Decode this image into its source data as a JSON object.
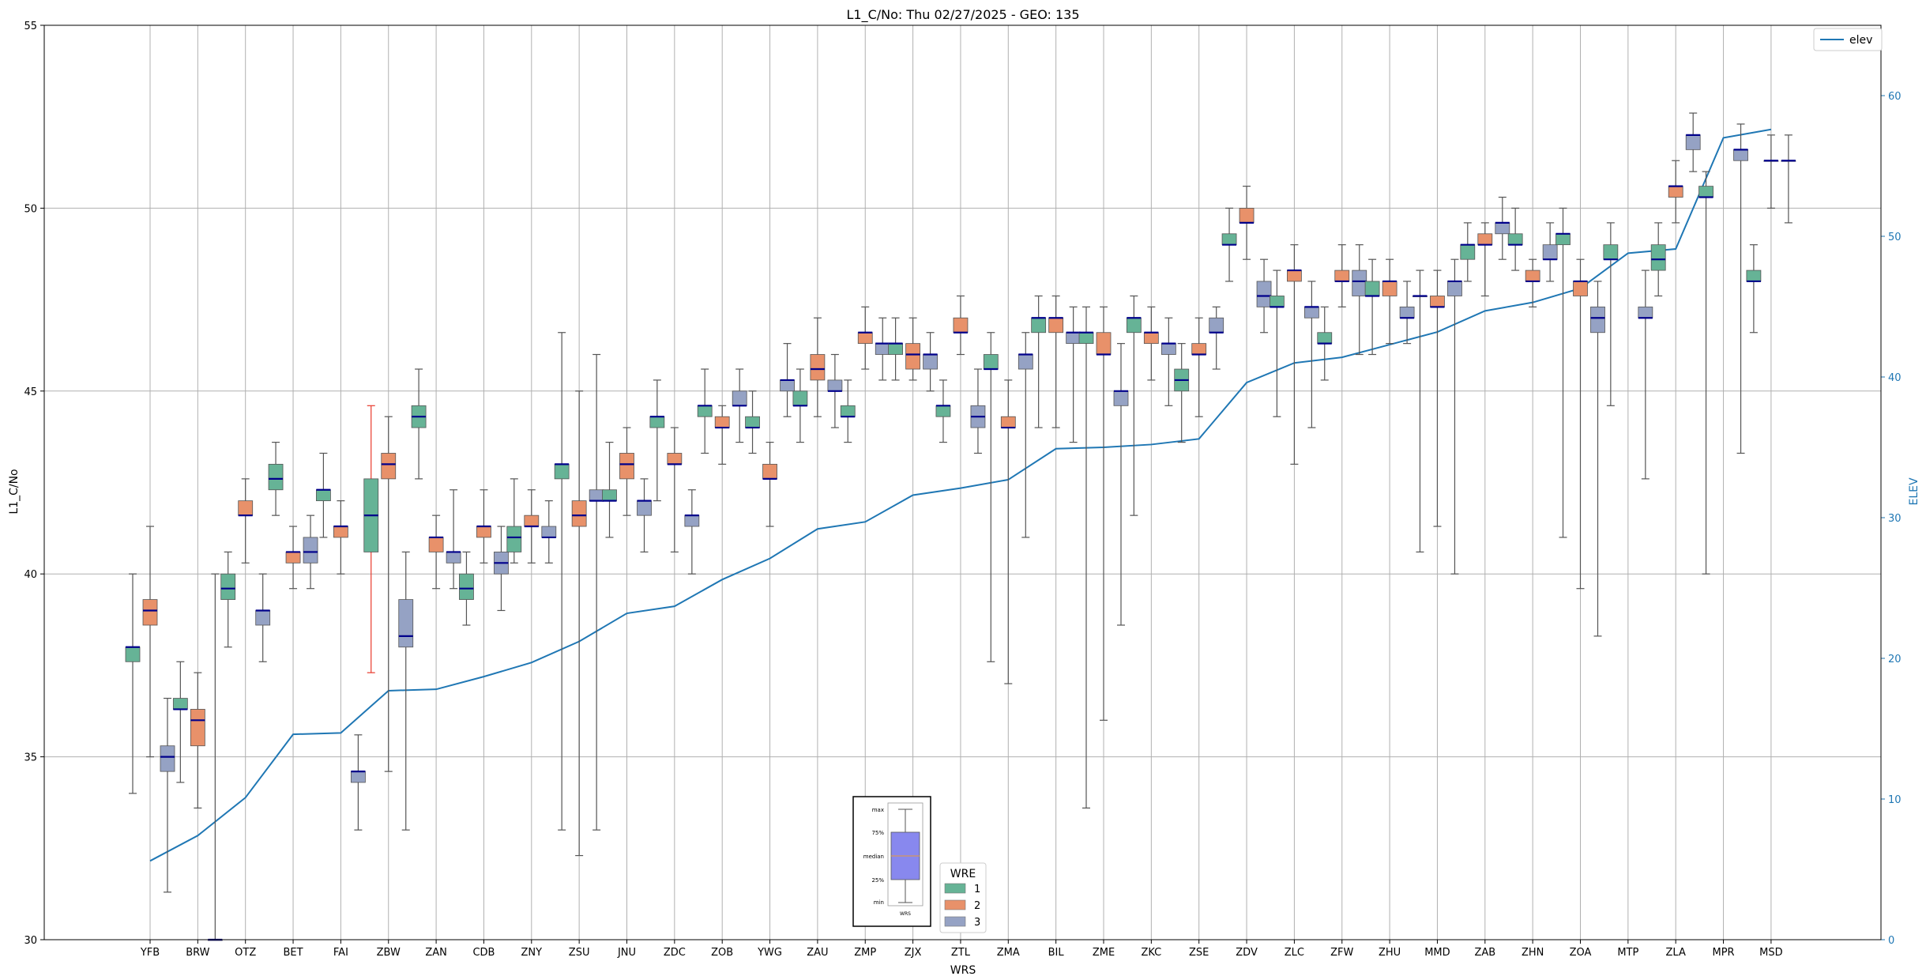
{
  "chart_data": {
    "type": "box",
    "title": "L1_C/No: Thu 02/27/2025 - GEO: 135",
    "xlabel": "WRS",
    "ylabel": "L1_C/No",
    "y2label": "ELEV",
    "ylim": [
      30,
      55
    ],
    "y2lim": [
      0,
      65
    ],
    "yticks": [
      30,
      35,
      40,
      45,
      50,
      55
    ],
    "y2ticks": [
      0,
      10,
      20,
      30,
      40,
      50,
      60
    ],
    "grid": true,
    "categories": [
      "YFB",
      "BRW",
      "OTZ",
      "BET",
      "FAI",
      "ZBW",
      "ZAN",
      "CDB",
      "ZNY",
      "ZSU",
      "JNU",
      "ZDC",
      "ZOB",
      "YWG",
      "ZAU",
      "ZMP",
      "ZJX",
      "ZTL",
      "ZMA",
      "BIL",
      "ZME",
      "ZKC",
      "ZSE",
      "ZDV",
      "ZLC",
      "ZFW",
      "ZHU",
      "MMD",
      "ZAB",
      "ZHN",
      "ZOA",
      "MTP",
      "ZLA",
      "MPR",
      "MSD"
    ],
    "wre_colors": {
      "1": "#66b396",
      "2": "#e8916a",
      "3": "#95a2c4"
    },
    "boxes": [
      {
        "cat": "YFB",
        "wre": 1,
        "min": 34.0,
        "q1": 37.6,
        "median": 38.0,
        "q3": 38.0,
        "max": 40.0
      },
      {
        "cat": "YFB",
        "wre": 2,
        "min": 35.0,
        "q1": 38.6,
        "median": 39.0,
        "q3": 39.3,
        "max": 41.3
      },
      {
        "cat": "YFB",
        "wre": 3,
        "min": 31.3,
        "q1": 34.6,
        "median": 35.0,
        "q3": 35.3,
        "max": 36.6
      },
      {
        "cat": "BRW",
        "wre": 1,
        "min": 34.3,
        "q1": 36.3,
        "median": 36.3,
        "q3": 36.6,
        "max": 37.6
      },
      {
        "cat": "BRW",
        "wre": 2,
        "min": 33.6,
        "q1": 35.3,
        "median": 36.0,
        "q3": 36.3,
        "max": 37.3
      },
      {
        "cat": "BRW",
        "wre": 3,
        "min": 30.0,
        "q1": 30.0,
        "median": 30.0,
        "q3": 30.0,
        "max": 40.0
      },
      {
        "cat": "OTZ",
        "wre": 1,
        "min": 38.0,
        "q1": 39.3,
        "median": 39.6,
        "q3": 40.0,
        "max": 40.6
      },
      {
        "cat": "OTZ",
        "wre": 2,
        "min": 40.3,
        "q1": 41.6,
        "median": 41.6,
        "q3": 42.0,
        "max": 42.6
      },
      {
        "cat": "OTZ",
        "wre": 3,
        "min": 37.6,
        "q1": 38.6,
        "median": 39.0,
        "q3": 39.0,
        "max": 40.0
      },
      {
        "cat": "BET",
        "wre": 1,
        "min": 41.6,
        "q1": 42.3,
        "median": 42.6,
        "q3": 43.0,
        "max": 43.6
      },
      {
        "cat": "BET",
        "wre": 2,
        "min": 39.6,
        "q1": 40.3,
        "median": 40.6,
        "q3": 40.6,
        "max": 41.3
      },
      {
        "cat": "BET",
        "wre": 3,
        "min": 39.6,
        "q1": 40.3,
        "median": 40.6,
        "q3": 41.0,
        "max": 41.6
      },
      {
        "cat": "FAI",
        "wre": 1,
        "min": 41.0,
        "q1": 42.0,
        "median": 42.3,
        "q3": 42.3,
        "max": 43.3
      },
      {
        "cat": "FAI",
        "wre": 2,
        "min": 40.0,
        "q1": 41.0,
        "median": 41.3,
        "q3": 41.3,
        "max": 42.0
      },
      {
        "cat": "FAI",
        "wre": 3,
        "min": 33.0,
        "q1": 34.3,
        "median": 34.6,
        "q3": 34.6,
        "max": 35.6
      },
      {
        "cat": "ZBW",
        "wre": 1,
        "min": 37.3,
        "q1": 40.6,
        "median": 41.6,
        "q3": 42.6,
        "max": 44.6,
        "whisker_color": "#e8392c"
      },
      {
        "cat": "ZBW",
        "wre": 2,
        "min": 34.6,
        "q1": 42.6,
        "median": 43.0,
        "q3": 43.3,
        "max": 44.3
      },
      {
        "cat": "ZBW",
        "wre": 3,
        "min": 33.0,
        "q1": 38.0,
        "median": 38.3,
        "q3": 39.3,
        "max": 40.6
      },
      {
        "cat": "ZAN",
        "wre": 1,
        "min": 42.6,
        "q1": 44.0,
        "median": 44.3,
        "q3": 44.6,
        "max": 45.6
      },
      {
        "cat": "ZAN",
        "wre": 2,
        "min": 39.6,
        "q1": 40.6,
        "median": 41.0,
        "q3": 41.0,
        "max": 41.6
      },
      {
        "cat": "ZAN",
        "wre": 3,
        "min": 39.6,
        "q1": 40.3,
        "median": 40.6,
        "q3": 40.6,
        "max": 42.3
      },
      {
        "cat": "CDB",
        "wre": 1,
        "min": 38.6,
        "q1": 39.3,
        "median": 39.6,
        "q3": 40.0,
        "max": 40.6
      },
      {
        "cat": "CDB",
        "wre": 2,
        "min": 40.3,
        "q1": 41.0,
        "median": 41.3,
        "q3": 41.3,
        "max": 42.3
      },
      {
        "cat": "CDB",
        "wre": 3,
        "min": 39.0,
        "q1": 40.0,
        "median": 40.3,
        "q3": 40.6,
        "max": 41.3
      },
      {
        "cat": "ZNY",
        "wre": 1,
        "min": 40.3,
        "q1": 40.6,
        "median": 41.0,
        "q3": 41.3,
        "max": 42.6
      },
      {
        "cat": "ZNY",
        "wre": 2,
        "min": 40.3,
        "q1": 41.3,
        "median": 41.3,
        "q3": 41.6,
        "max": 42.3
      },
      {
        "cat": "ZNY",
        "wre": 3,
        "min": 40.3,
        "q1": 41.0,
        "median": 41.0,
        "q3": 41.3,
        "max": 42.0
      },
      {
        "cat": "ZSU",
        "wre": 1,
        "min": 33.0,
        "q1": 42.6,
        "median": 43.0,
        "q3": 43.0,
        "max": 46.6
      },
      {
        "cat": "ZSU",
        "wre": 2,
        "min": 32.3,
        "q1": 41.3,
        "median": 41.6,
        "q3": 42.0,
        "max": 45.0
      },
      {
        "cat": "ZSU",
        "wre": 3,
        "min": 33.0,
        "q1": 42.0,
        "median": 42.0,
        "q3": 42.3,
        "max": 46.0
      },
      {
        "cat": "JNU",
        "wre": 1,
        "min": 41.0,
        "q1": 42.0,
        "median": 42.0,
        "q3": 42.3,
        "max": 43.6
      },
      {
        "cat": "JNU",
        "wre": 2,
        "min": 41.6,
        "q1": 42.6,
        "median": 43.0,
        "q3": 43.3,
        "max": 44.0
      },
      {
        "cat": "JNU",
        "wre": 3,
        "min": 40.6,
        "q1": 41.6,
        "median": 42.0,
        "q3": 42.0,
        "max": 42.6
      },
      {
        "cat": "ZDC",
        "wre": 1,
        "min": 42.0,
        "q1": 44.0,
        "median": 44.3,
        "q3": 44.3,
        "max": 45.3
      },
      {
        "cat": "ZDC",
        "wre": 2,
        "min": 40.6,
        "q1": 43.0,
        "median": 43.0,
        "q3": 43.3,
        "max": 44.0
      },
      {
        "cat": "ZDC",
        "wre": 3,
        "min": 40.0,
        "q1": 41.3,
        "median": 41.6,
        "q3": 41.6,
        "max": 42.3
      },
      {
        "cat": "ZOB",
        "wre": 1,
        "min": 43.3,
        "q1": 44.3,
        "median": 44.6,
        "q3": 44.6,
        "max": 45.6
      },
      {
        "cat": "ZOB",
        "wre": 2,
        "min": 43.0,
        "q1": 44.0,
        "median": 44.0,
        "q3": 44.3,
        "max": 44.6
      },
      {
        "cat": "ZOB",
        "wre": 3,
        "min": 43.6,
        "q1": 44.6,
        "median": 44.6,
        "q3": 45.0,
        "max": 45.6
      },
      {
        "cat": "YWG",
        "wre": 1,
        "min": 43.3,
        "q1": 44.0,
        "median": 44.0,
        "q3": 44.3,
        "max": 45.0
      },
      {
        "cat": "YWG",
        "wre": 2,
        "min": 41.3,
        "q1": 42.6,
        "median": 42.6,
        "q3": 43.0,
        "max": 43.6
      },
      {
        "cat": "YWG",
        "wre": 3,
        "min": 44.3,
        "q1": 45.0,
        "median": 45.3,
        "q3": 45.3,
        "max": 46.3
      },
      {
        "cat": "ZAU",
        "wre": 1,
        "min": 43.6,
        "q1": 44.6,
        "median": 44.6,
        "q3": 45.0,
        "max": 45.6
      },
      {
        "cat": "ZAU",
        "wre": 2,
        "min": 44.3,
        "q1": 45.3,
        "median": 45.6,
        "q3": 46.0,
        "max": 47.0
      },
      {
        "cat": "ZAU",
        "wre": 3,
        "min": 44.0,
        "q1": 45.0,
        "median": 45.0,
        "q3": 45.3,
        "max": 46.0
      },
      {
        "cat": "ZMP",
        "wre": 1,
        "min": 43.6,
        "q1": 44.3,
        "median": 44.3,
        "q3": 44.6,
        "max": 45.3
      },
      {
        "cat": "ZMP",
        "wre": 2,
        "min": 45.6,
        "q1": 46.3,
        "median": 46.6,
        "q3": 46.6,
        "max": 47.3
      },
      {
        "cat": "ZMP",
        "wre": 3,
        "min": 45.3,
        "q1": 46.0,
        "median": 46.3,
        "q3": 46.3,
        "max": 47.0
      },
      {
        "cat": "ZJX",
        "wre": 1,
        "min": 45.3,
        "q1": 46.0,
        "median": 46.3,
        "q3": 46.3,
        "max": 47.0
      },
      {
        "cat": "ZJX",
        "wre": 2,
        "min": 45.3,
        "q1": 45.6,
        "median": 46.0,
        "q3": 46.3,
        "max": 47.0
      },
      {
        "cat": "ZJX",
        "wre": 3,
        "min": 45.0,
        "q1": 45.6,
        "median": 46.0,
        "q3": 46.0,
        "max": 46.6
      },
      {
        "cat": "ZTL",
        "wre": 1,
        "min": 43.6,
        "q1": 44.3,
        "median": 44.6,
        "q3": 44.6,
        "max": 45.3
      },
      {
        "cat": "ZTL",
        "wre": 2,
        "min": 46.0,
        "q1": 46.6,
        "median": 46.6,
        "q3": 47.0,
        "max": 47.6
      },
      {
        "cat": "ZTL",
        "wre": 3,
        "min": 43.3,
        "q1": 44.0,
        "median": 44.3,
        "q3": 44.6,
        "max": 45.6
      },
      {
        "cat": "ZMA",
        "wre": 1,
        "min": 37.6,
        "q1": 45.6,
        "median": 45.6,
        "q3": 46.0,
        "max": 46.6
      },
      {
        "cat": "ZMA",
        "wre": 2,
        "min": 37.0,
        "q1": 44.0,
        "median": 44.0,
        "q3": 44.3,
        "max": 45.3
      },
      {
        "cat": "ZMA",
        "wre": 3,
        "min": 41.0,
        "q1": 45.6,
        "median": 46.0,
        "q3": 46.0,
        "max": 46.6
      },
      {
        "cat": "BIL",
        "wre": 1,
        "min": 44.0,
        "q1": 46.6,
        "median": 47.0,
        "q3": 47.0,
        "max": 47.6
      },
      {
        "cat": "BIL",
        "wre": 2,
        "min": 44.0,
        "q1": 46.6,
        "median": 47.0,
        "q3": 47.0,
        "max": 47.6
      },
      {
        "cat": "BIL",
        "wre": 3,
        "min": 43.6,
        "q1": 46.3,
        "median": 46.6,
        "q3": 46.6,
        "max": 47.3
      },
      {
        "cat": "ZME",
        "wre": 1,
        "min": 33.6,
        "q1": 46.3,
        "median": 46.6,
        "q3": 46.6,
        "max": 47.3
      },
      {
        "cat": "ZME",
        "wre": 2,
        "min": 36.0,
        "q1": 46.0,
        "median": 46.0,
        "q3": 46.6,
        "max": 47.3
      },
      {
        "cat": "ZME",
        "wre": 3,
        "min": 38.6,
        "q1": 44.6,
        "median": 45.0,
        "q3": 45.0,
        "max": 46.3
      },
      {
        "cat": "ZKC",
        "wre": 1,
        "min": 41.6,
        "q1": 46.6,
        "median": 47.0,
        "q3": 47.0,
        "max": 47.6
      },
      {
        "cat": "ZKC",
        "wre": 2,
        "min": 45.3,
        "q1": 46.3,
        "median": 46.6,
        "q3": 46.6,
        "max": 47.3
      },
      {
        "cat": "ZKC",
        "wre": 3,
        "min": 44.6,
        "q1": 46.0,
        "median": 46.3,
        "q3": 46.3,
        "max": 47.0
      },
      {
        "cat": "ZSE",
        "wre": 1,
        "min": 43.6,
        "q1": 45.0,
        "median": 45.3,
        "q3": 45.6,
        "max": 46.3
      },
      {
        "cat": "ZSE",
        "wre": 2,
        "min": 44.3,
        "q1": 46.0,
        "median": 46.0,
        "q3": 46.3,
        "max": 47.0
      },
      {
        "cat": "ZSE",
        "wre": 3,
        "min": 45.6,
        "q1": 46.6,
        "median": 46.6,
        "q3": 47.0,
        "max": 47.3
      },
      {
        "cat": "ZDV",
        "wre": 1,
        "min": 48.0,
        "q1": 49.0,
        "median": 49.0,
        "q3": 49.3,
        "max": 50.0
      },
      {
        "cat": "ZDV",
        "wre": 2,
        "min": 48.6,
        "q1": 49.6,
        "median": 49.6,
        "q3": 50.0,
        "max": 50.6
      },
      {
        "cat": "ZDV",
        "wre": 3,
        "min": 46.6,
        "q1": 47.3,
        "median": 47.6,
        "q3": 48.0,
        "max": 48.6
      },
      {
        "cat": "ZLC",
        "wre": 1,
        "min": 44.3,
        "q1": 47.3,
        "median": 47.3,
        "q3": 47.6,
        "max": 48.3
      },
      {
        "cat": "ZLC",
        "wre": 2,
        "min": 43.0,
        "q1": 48.0,
        "median": 48.3,
        "q3": 48.3,
        "max": 49.0
      },
      {
        "cat": "ZLC",
        "wre": 3,
        "min": 44.0,
        "q1": 47.0,
        "median": 47.3,
        "q3": 47.3,
        "max": 48.0
      },
      {
        "cat": "ZFW",
        "wre": 1,
        "min": 45.3,
        "q1": 46.3,
        "median": 46.3,
        "q3": 46.6,
        "max": 47.3
      },
      {
        "cat": "ZFW",
        "wre": 2,
        "min": 47.3,
        "q1": 48.0,
        "median": 48.0,
        "q3": 48.3,
        "max": 49.0
      },
      {
        "cat": "ZFW",
        "wre": 3,
        "min": 46.0,
        "q1": 47.6,
        "median": 48.0,
        "q3": 48.3,
        "max": 49.0
      },
      {
        "cat": "ZHU",
        "wre": 1,
        "min": 46.0,
        "q1": 47.6,
        "median": 47.6,
        "q3": 48.0,
        "max": 48.6
      },
      {
        "cat": "ZHU",
        "wre": 2,
        "min": 46.3,
        "q1": 47.6,
        "median": 48.0,
        "q3": 48.0,
        "max": 48.6
      },
      {
        "cat": "ZHU",
        "wre": 3,
        "min": 46.3,
        "q1": 47.0,
        "median": 47.0,
        "q3": 47.3,
        "max": 48.0
      },
      {
        "cat": "MMD",
        "wre": 1,
        "min": 40.6,
        "q1": 47.6,
        "median": 47.6,
        "q3": 47.6,
        "max": 48.3
      },
      {
        "cat": "MMD",
        "wre": 2,
        "min": 41.3,
        "q1": 47.3,
        "median": 47.3,
        "q3": 47.6,
        "max": 48.3
      },
      {
        "cat": "MMD",
        "wre": 3,
        "min": 40.0,
        "q1": 47.6,
        "median": 48.0,
        "q3": 48.0,
        "max": 48.6
      },
      {
        "cat": "ZAB",
        "wre": 1,
        "min": 48.0,
        "q1": 48.6,
        "median": 49.0,
        "q3": 49.0,
        "max": 49.6
      },
      {
        "cat": "ZAB",
        "wre": 2,
        "min": 47.6,
        "q1": 49.0,
        "median": 49.0,
        "q3": 49.3,
        "max": 49.6
      },
      {
        "cat": "ZAB",
        "wre": 3,
        "min": 48.6,
        "q1": 49.3,
        "median": 49.6,
        "q3": 49.6,
        "max": 50.3
      },
      {
        "cat": "ZHN",
        "wre": 1,
        "min": 48.3,
        "q1": 49.0,
        "median": 49.0,
        "q3": 49.3,
        "max": 50.0
      },
      {
        "cat": "ZHN",
        "wre": 2,
        "min": 47.3,
        "q1": 48.0,
        "median": 48.0,
        "q3": 48.3,
        "max": 48.6
      },
      {
        "cat": "ZHN",
        "wre": 3,
        "min": 48.0,
        "q1": 48.6,
        "median": 48.6,
        "q3": 49.0,
        "max": 49.6
      },
      {
        "cat": "ZOA",
        "wre": 1,
        "min": 41.0,
        "q1": 49.0,
        "median": 49.3,
        "q3": 49.3,
        "max": 50.0
      },
      {
        "cat": "ZOA",
        "wre": 2,
        "min": 39.6,
        "q1": 47.6,
        "median": 48.0,
        "q3": 48.0,
        "max": 48.6
      },
      {
        "cat": "ZOA",
        "wre": 3,
        "min": 38.3,
        "q1": 46.6,
        "median": 47.0,
        "q3": 47.3,
        "max": 48.0
      },
      {
        "cat": "MTP",
        "wre": 1,
        "min": 44.6,
        "q1": 48.6,
        "median": 48.6,
        "q3": 49.0,
        "max": 49.6
      },
      {
        "cat": "MTP",
        "wre": 3,
        "min": 42.6,
        "q1": 47.0,
        "median": 47.0,
        "q3": 47.3,
        "max": 48.3
      },
      {
        "cat": "ZLA",
        "wre": 1,
        "min": 47.6,
        "q1": 48.3,
        "median": 48.6,
        "q3": 49.0,
        "max": 49.6
      },
      {
        "cat": "ZLA",
        "wre": 2,
        "min": 49.6,
        "q1": 50.3,
        "median": 50.6,
        "q3": 50.6,
        "max": 51.3
      },
      {
        "cat": "ZLA",
        "wre": 3,
        "min": 51.0,
        "q1": 51.6,
        "median": 52.0,
        "q3": 52.0,
        "max": 52.6
      },
      {
        "cat": "MPR",
        "wre": 1,
        "min": 40.0,
        "q1": 50.3,
        "median": 50.3,
        "q3": 50.6,
        "max": 51.0
      },
      {
        "cat": "MPR",
        "wre": 3,
        "min": 43.3,
        "q1": 51.3,
        "median": 51.6,
        "q3": 51.6,
        "max": 52.3
      },
      {
        "cat": "MSD",
        "wre": 1,
        "min": 46.6,
        "q1": 48.0,
        "median": 48.0,
        "q3": 48.3,
        "max": 49.0
      },
      {
        "cat": "MSD",
        "wre": 3,
        "min": 49.6,
        "q1": 51.3,
        "median": 51.3,
        "q3": 51.3,
        "max": 52.0
      },
      {
        "cat": "MSD",
        "wre": 2,
        "min": 50.0,
        "q1": 51.3,
        "median": 51.3,
        "q3": 51.3,
        "max": 52.0
      }
    ],
    "elev_series": {
      "name": "elev",
      "color": "#1f77b4",
      "values": [
        5.6,
        7.4,
        10.1,
        14.6,
        14.7,
        17.7,
        17.8,
        18.7,
        19.7,
        21.2,
        23.2,
        23.7,
        25.6,
        27.1,
        29.2,
        29.7,
        31.6,
        32.1,
        32.7,
        34.9,
        35.0,
        35.2,
        35.6,
        39.6,
        41.0,
        41.4,
        42.3,
        43.2,
        44.7,
        45.3,
        46.3,
        48.8,
        49.1,
        57.0,
        57.6
      ]
    },
    "legend_elev_label": "elev",
    "legend_wre": {
      "title": "WRE",
      "items": [
        "1",
        "2",
        "3"
      ]
    },
    "key_box": {
      "labels": [
        "max",
        "75%",
        "median",
        "25%",
        "min"
      ],
      "xlabel": "WRS",
      "fill": "#8888ee"
    }
  }
}
